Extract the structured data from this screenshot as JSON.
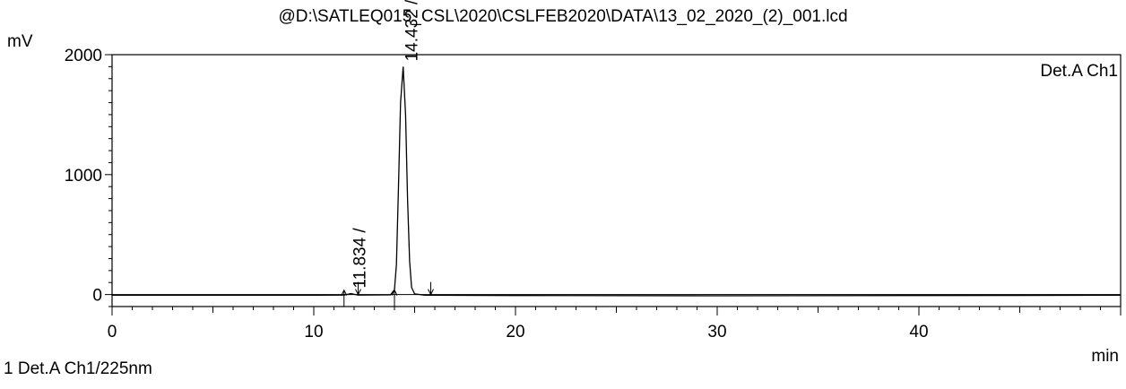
{
  "chart_data": {
    "type": "line",
    "title": "@D:\\SATLEQ015_CSL\\2020\\CSLFEB2020\\DATA\\13_02_2020_(2)_001.lcd",
    "xlabel": "min",
    "ylabel": "mV",
    "xlim": [
      0,
      50
    ],
    "ylim": [
      -100,
      2000
    ],
    "x_ticks": [
      0,
      10,
      20,
      30,
      40
    ],
    "y_ticks": [
      0,
      1000,
      2000
    ],
    "grid": false,
    "legend": "top-right",
    "series": [
      {
        "name": "Det.A Ch1",
        "x": [
          0,
          5,
          10,
          11.5,
          11.834,
          12.2,
          13.8,
          14.0,
          14.1,
          14.2,
          14.3,
          14.432,
          14.55,
          14.65,
          14.75,
          14.85,
          15.0,
          15.5,
          20,
          30,
          40,
          50
        ],
        "y": [
          -5,
          -5,
          -5,
          -4,
          8,
          -4,
          -3,
          40,
          250,
          900,
          1600,
          1900,
          1500,
          800,
          280,
          60,
          5,
          -5,
          -8,
          -10,
          -8,
          -6
        ]
      }
    ],
    "peaks": [
      {
        "rt": 11.834,
        "label": "11.834 /",
        "start": 11.5,
        "end": 12.2,
        "height": 8
      },
      {
        "rt": 14.432,
        "label": "14.432 /",
        "start": 14.0,
        "end": 15.8,
        "height": 1900
      }
    ],
    "footer": "1 Det.A Ch1/225nm",
    "color": "#000000"
  }
}
